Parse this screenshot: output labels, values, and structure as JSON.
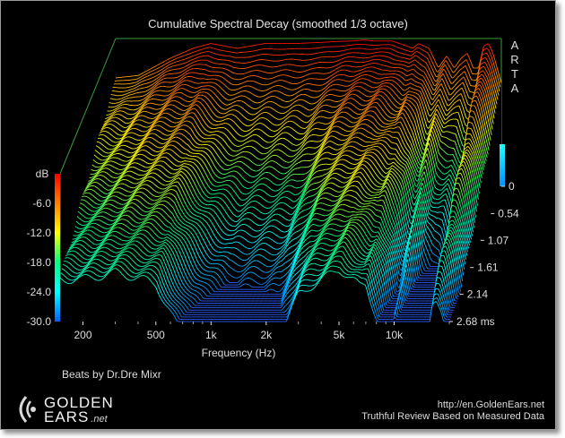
{
  "chart_data": {
    "type": "area",
    "title": "Cumulative Spectral Decay (smoothed 1/3 octave)",
    "software_label": "ARTA",
    "xlabel": "Frequency (Hz)",
    "x_scale": "log",
    "xlim": [
      150,
      20000
    ],
    "x_ticks": [
      {
        "value": 200,
        "label": "200"
      },
      {
        "value": 500,
        "label": "500"
      },
      {
        "value": 1000,
        "label": "1k"
      },
      {
        "value": 2000,
        "label": "2k"
      },
      {
        "value": 5000,
        "label": "5k"
      },
      {
        "value": 10000,
        "label": "10k"
      }
    ],
    "ylabel": "dB",
    "ylim": [
      -30,
      0
    ],
    "y_ticks": [
      {
        "value": -6,
        "label": "-6.0"
      },
      {
        "value": -12,
        "label": "-12.0"
      },
      {
        "value": -18,
        "label": "-18.0"
      },
      {
        "value": -24,
        "label": "-24.0"
      },
      {
        "value": -30,
        "label": "-30.0"
      }
    ],
    "time_axis": {
      "unit": "ms",
      "range": [
        0,
        2.68
      ],
      "ticks": [
        {
          "value": 0,
          "label": "0"
        },
        {
          "value": 0.54,
          "label": "0.54"
        },
        {
          "value": 1.07,
          "label": "1.07"
        },
        {
          "value": 1.61,
          "label": "1.61"
        },
        {
          "value": 2.14,
          "label": "2.14"
        },
        {
          "value": 2.68,
          "label": "2.68 ms"
        }
      ]
    },
    "slice_count": 60,
    "colormap": [
      "#ff0000",
      "#ff8000",
      "#ffff00",
      "#00ff80",
      "#00ffff",
      "#0080ff"
    ],
    "frequency_response_initial": {
      "x": [
        150,
        200,
        300,
        400,
        500,
        700,
        1000,
        1500,
        2000,
        2500,
        3000,
        3500,
        4000,
        5000,
        6000,
        6500,
        7000,
        8000,
        9000,
        10000,
        11000,
        12000,
        13000,
        14000,
        15000,
        16000,
        17000,
        18000,
        20000
      ],
      "y": [
        -8,
        -7.5,
        -4,
        -2,
        -1,
        -2,
        -1,
        -1,
        -0.8,
        -0.6,
        -0.5,
        -0.3,
        -0.5,
        -0.5,
        -1.5,
        -2,
        -1,
        -2,
        -6,
        -3.5,
        -6,
        -4,
        -3,
        -6,
        -6,
        -1.5,
        -1,
        -3,
        -9
      ]
    },
    "decay_rates_db_per_ms": {
      "x": [
        150,
        200,
        300,
        500,
        800,
        1000,
        2000,
        3000,
        5000,
        7000,
        9000,
        10000,
        12000,
        15000,
        16000,
        17000,
        20000
      ],
      "y": [
        5,
        5.2,
        6,
        8,
        13,
        15,
        14,
        9,
        7,
        8,
        12,
        10,
        16,
        18,
        9,
        9,
        10
      ]
    },
    "caption": "Beats by Dr.Dre Mixr"
  },
  "branding": {
    "logo_line1": "GOLDEN",
    "logo_line2": "EARS",
    "logo_suffix": ".net",
    "url": "http://en.GoldenEars.net",
    "tagline": "Truthful Review Based on Measured Data"
  },
  "colors": {
    "background": "#000000",
    "frame_border": "#9a9a9a",
    "box_edges": "#3a9a3a",
    "text": "#dcdcdc",
    "floor_lines": "#3060ff"
  }
}
